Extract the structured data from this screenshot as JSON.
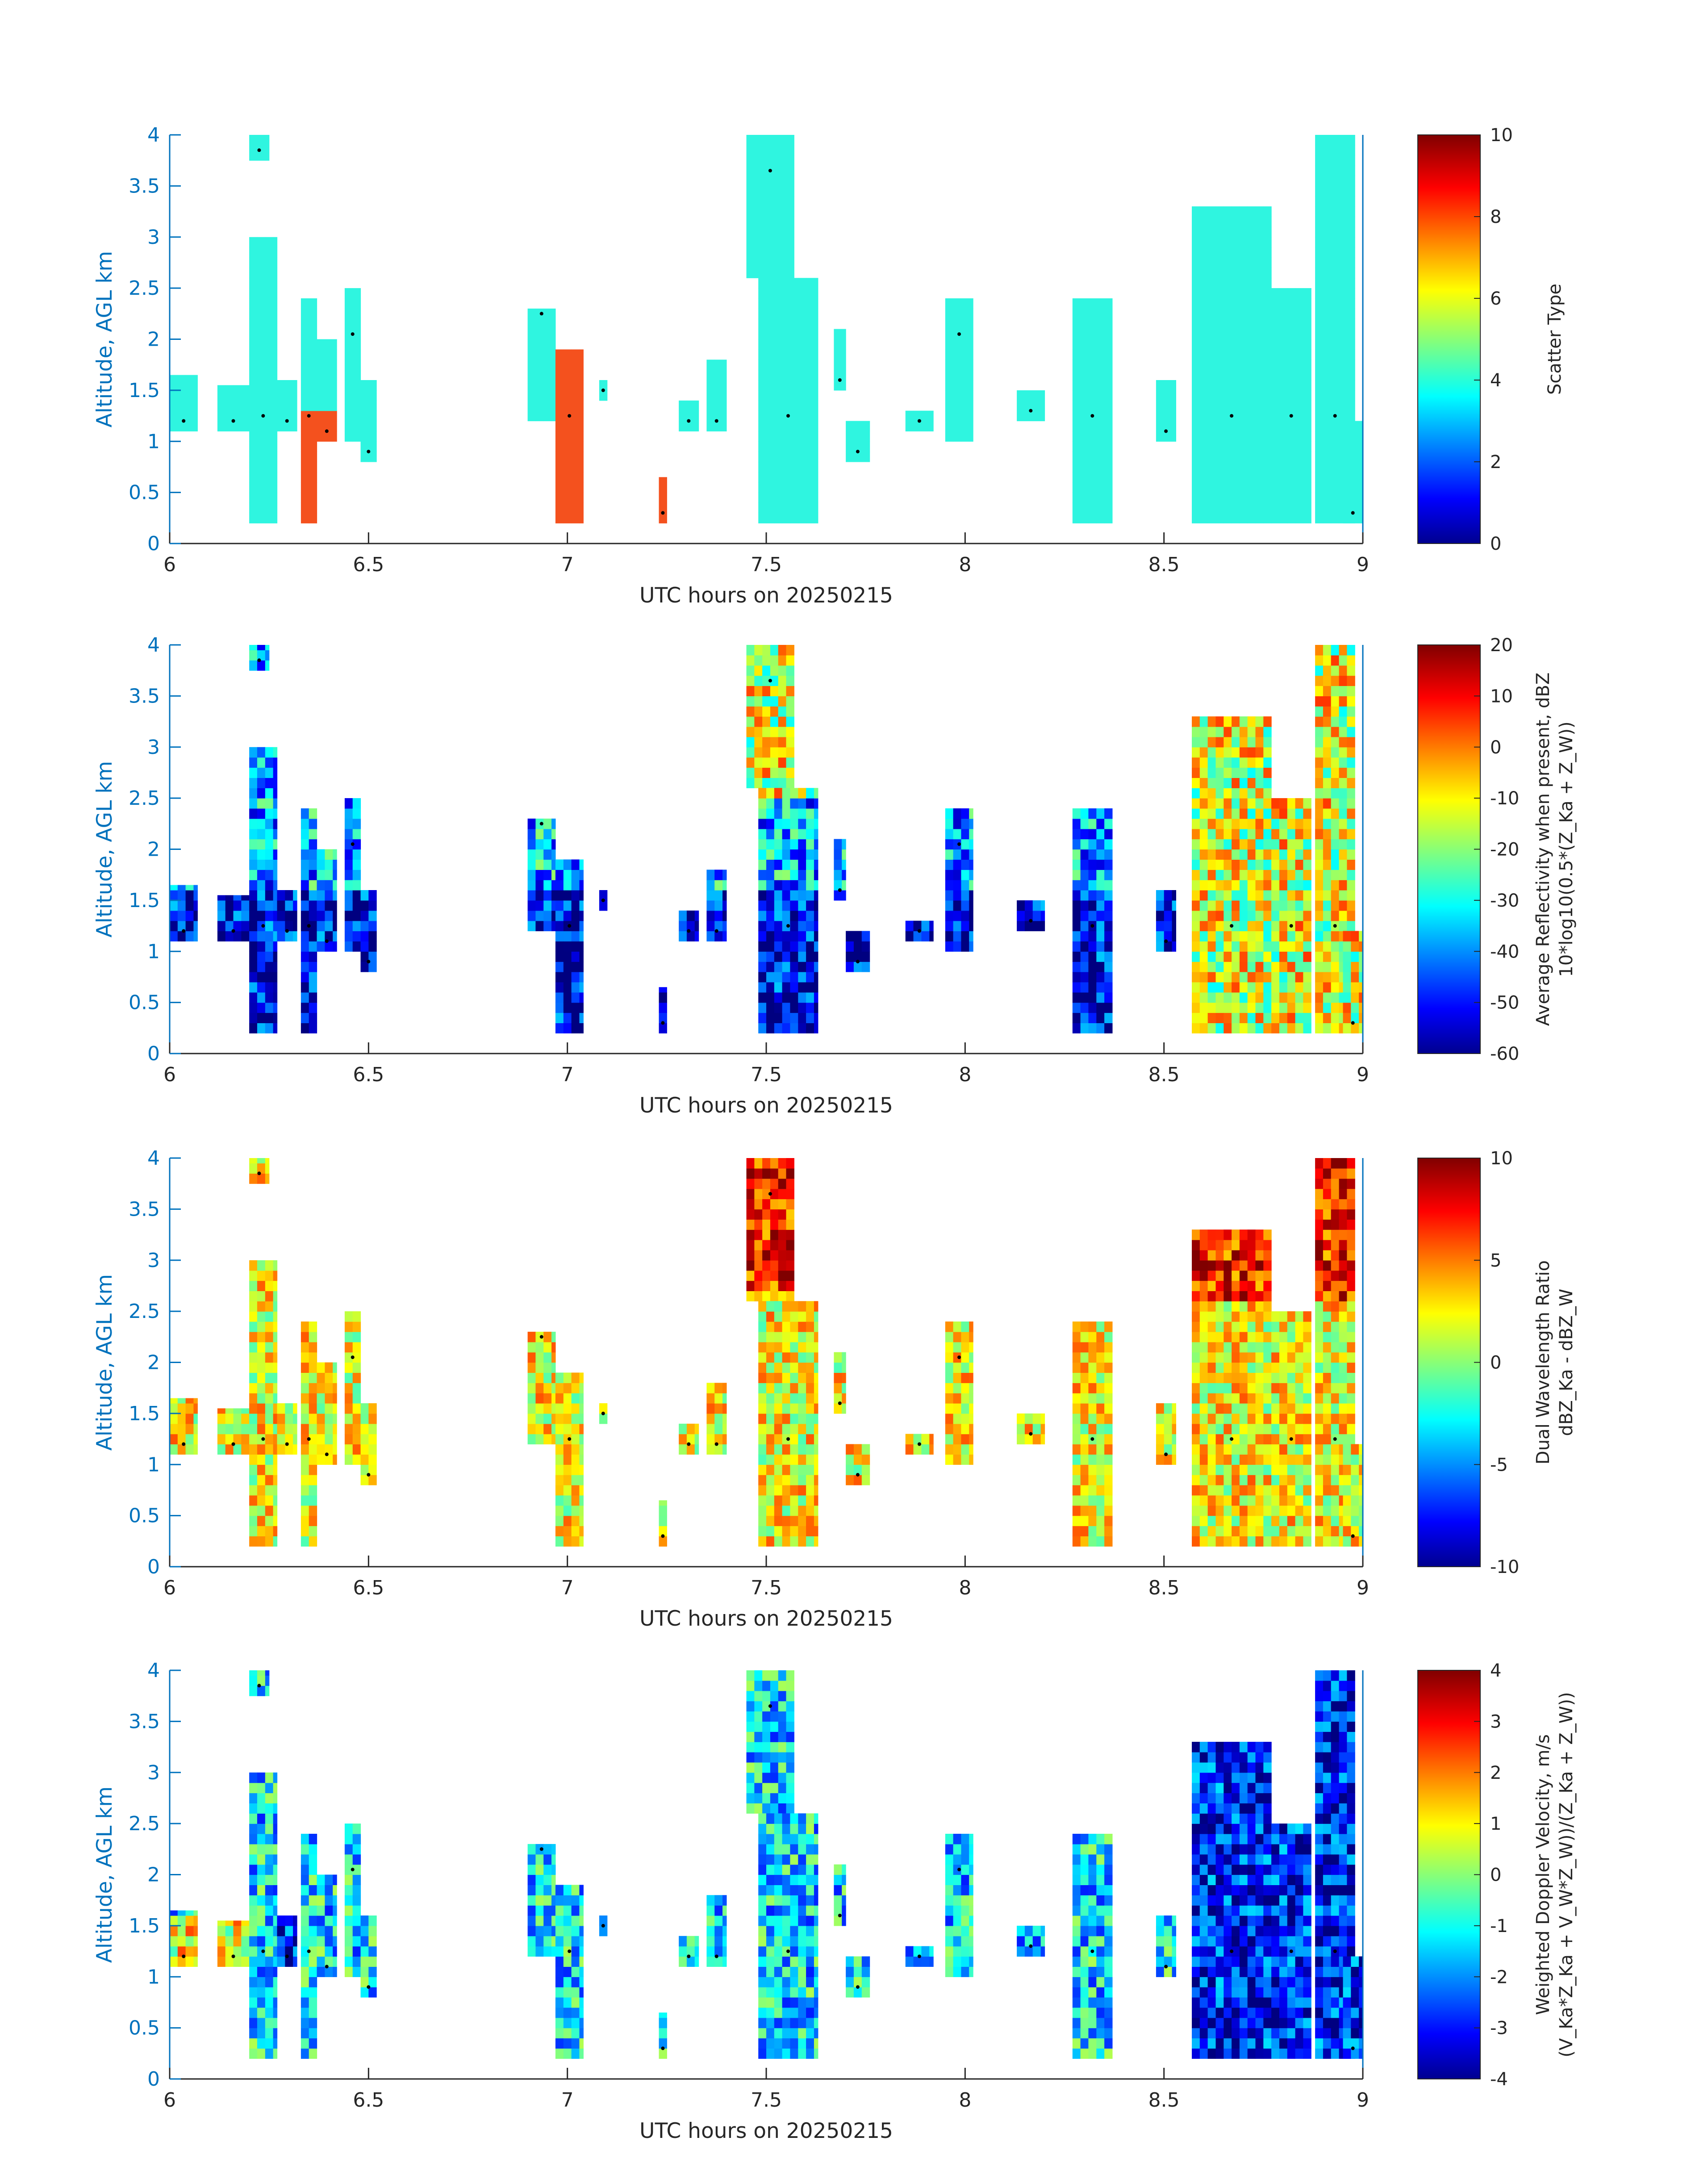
{
  "figure": {
    "colormap": "jet",
    "axis_color": "#0072bd",
    "tick_color": "#262626",
    "scatter_red": "#f4511e"
  },
  "chart_data": [
    {
      "type": "heatmap",
      "panel": "scatter-type",
      "xlabel": "UTC hours on 20250215",
      "ylabel": "Altitude, AGL km",
      "xlim": [
        6,
        9
      ],
      "ylim": [
        0,
        4
      ],
      "xticks": [
        "6",
        "6.5",
        "7",
        "7.5",
        "8",
        "8.5",
        "9"
      ],
      "yticks": [
        "0",
        "0.5",
        "1",
        "1.5",
        "2",
        "2.5",
        "3",
        "3.5",
        "4"
      ],
      "colorbar": {
        "label_lines": [
          "Scatter Type"
        ],
        "clim": [
          0,
          10
        ],
        "ticks": [
          "0",
          "2",
          "4",
          "6",
          "8",
          "10"
        ]
      },
      "values_note": "dominant value 4 (cyan), with value ~9 (red-orange) in narrow columns"
    },
    {
      "type": "heatmap",
      "panel": "reflectivity",
      "xlabel": "UTC hours on 20250215",
      "ylabel": "Altitude, AGL km",
      "xlim": [
        6,
        9
      ],
      "ylim": [
        0,
        4
      ],
      "xticks": [
        "6",
        "6.5",
        "7",
        "7.5",
        "8",
        "8.5",
        "9"
      ],
      "yticks": [
        "0",
        "0.5",
        "1",
        "1.5",
        "2",
        "2.5",
        "3",
        "3.5",
        "4"
      ],
      "colorbar": {
        "label_lines": [
          "Average Reflectivity when present, dBZ",
          "10*log10(0.5*(Z_Ka + Z_W))"
        ],
        "clim": [
          -60,
          20
        ],
        "ticks": [
          "-60",
          "-50",
          "-40",
          "-30",
          "-20",
          "-10",
          "0",
          "10",
          "20"
        ]
      }
    },
    {
      "type": "heatmap",
      "panel": "dwr",
      "xlabel": "UTC hours on 20250215",
      "ylabel": "Altitude, AGL km",
      "xlim": [
        6,
        9
      ],
      "ylim": [
        0,
        4
      ],
      "xticks": [
        "6",
        "6.5",
        "7",
        "7.5",
        "8",
        "8.5",
        "9"
      ],
      "yticks": [
        "0",
        "0.5",
        "1",
        "1.5",
        "2",
        "2.5",
        "3",
        "3.5",
        "4"
      ],
      "colorbar": {
        "label_lines": [
          "Dual Wavelength Ratio",
          "dBZ_Ka - dBZ_W"
        ],
        "clim": [
          -10,
          10
        ],
        "ticks": [
          "-10",
          "-5",
          "0",
          "5",
          "10"
        ]
      }
    },
    {
      "type": "heatmap",
      "panel": "doppler",
      "xlabel": "UTC hours on 20250215",
      "ylabel": "Altitude, AGL km",
      "xlim": [
        6,
        9
      ],
      "ylim": [
        0,
        4
      ],
      "xticks": [
        "6",
        "6.5",
        "7",
        "7.5",
        "8",
        "8.5",
        "9"
      ],
      "yticks": [
        "0",
        "0.5",
        "1",
        "1.5",
        "2",
        "2.5",
        "3",
        "3.5",
        "4"
      ],
      "colorbar": {
        "label_lines": [
          "Weighted Doppler Velocity, m/s",
          "(V_Ka*Z_Ka + V_W*Z_W))/(Z_Ka + Z_W))"
        ],
        "clim": [
          -4,
          4
        ],
        "ticks": [
          "-4",
          "-3",
          "-2",
          "-1",
          "0",
          "1",
          "2",
          "3",
          "4"
        ]
      }
    }
  ],
  "cloud_columns": [
    {
      "t": [
        6.0,
        6.07
      ],
      "z": [
        1.1,
        1.65
      ]
    },
    {
      "t": [
        6.12,
        6.2
      ],
      "z": [
        1.1,
        1.55
      ]
    },
    {
      "t": [
        6.2,
        6.25
      ],
      "z": [
        3.75,
        4.0
      ]
    },
    {
      "t": [
        6.2,
        6.27
      ],
      "z": [
        0.2,
        3.0
      ]
    },
    {
      "t": [
        6.27,
        6.32
      ],
      "z": [
        1.1,
        1.6
      ]
    },
    {
      "t": [
        6.33,
        6.37
      ],
      "z": [
        0.2,
        2.4
      ]
    },
    {
      "t": [
        6.37,
        6.42
      ],
      "z": [
        1.0,
        2.0
      ]
    },
    {
      "t": [
        6.44,
        6.48
      ],
      "z": [
        1.0,
        2.5
      ]
    },
    {
      "t": [
        6.48,
        6.52
      ],
      "z": [
        0.8,
        1.6
      ]
    },
    {
      "t": [
        6.9,
        6.97
      ],
      "z": [
        1.2,
        2.3
      ]
    },
    {
      "t": [
        6.97,
        7.04
      ],
      "z": [
        0.2,
        1.9
      ]
    },
    {
      "t": [
        7.08,
        7.1
      ],
      "z": [
        1.4,
        1.6
      ]
    },
    {
      "t": [
        7.23,
        7.25
      ],
      "z": [
        0.2,
        0.65
      ]
    },
    {
      "t": [
        7.28,
        7.33
      ],
      "z": [
        1.1,
        1.4
      ]
    },
    {
      "t": [
        7.35,
        7.4
      ],
      "z": [
        1.1,
        1.8
      ]
    },
    {
      "t": [
        7.45,
        7.57
      ],
      "z": [
        2.6,
        4.0
      ]
    },
    {
      "t": [
        7.48,
        7.63
      ],
      "z": [
        0.2,
        2.6
      ]
    },
    {
      "t": [
        7.67,
        7.7
      ],
      "z": [
        1.5,
        2.1
      ]
    },
    {
      "t": [
        7.7,
        7.76
      ],
      "z": [
        0.8,
        1.2
      ]
    },
    {
      "t": [
        7.85,
        7.92
      ],
      "z": [
        1.1,
        1.3
      ]
    },
    {
      "t": [
        7.95,
        8.02
      ],
      "z": [
        1.0,
        2.4
      ]
    },
    {
      "t": [
        8.13,
        8.2
      ],
      "z": [
        1.2,
        1.5
      ]
    },
    {
      "t": [
        8.27,
        8.37
      ],
      "z": [
        0.2,
        2.4
      ]
    },
    {
      "t": [
        8.48,
        8.53
      ],
      "z": [
        1.0,
        1.6
      ]
    },
    {
      "t": [
        8.57,
        8.77
      ],
      "z": [
        0.2,
        3.3
      ]
    },
    {
      "t": [
        8.77,
        8.87
      ],
      "z": [
        0.2,
        2.5
      ]
    },
    {
      "t": [
        8.88,
        8.98
      ],
      "z": [
        0.2,
        4.0
      ]
    },
    {
      "t": [
        8.95,
        9.0
      ],
      "z": [
        0.2,
        1.2
      ]
    }
  ]
}
